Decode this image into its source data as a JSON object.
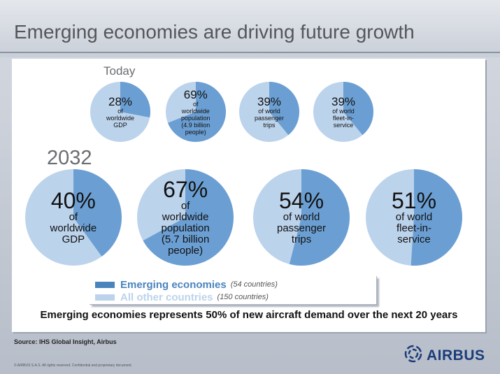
{
  "page": {
    "title": "Emerging economies are driving future growth",
    "source": "Source: IHS Global Insight, Airbus",
    "copyright": "© AIRBUS S.A.S. All rights reserved. Confidential and proprietary document.",
    "logo_text": "AIRBUS",
    "tagline": "Emerging economies represents 50% of new aircraft demand over the next 20 years"
  },
  "colors": {
    "emerging": "#4a84bd",
    "pie_emerging": "#6b9fd3",
    "other": "#bcd3ec",
    "legend_other_text": "#bcd3ec",
    "logo": "#1c3c7a"
  },
  "legend": {
    "emerging_label": "Emerging economies",
    "emerging_note": "(54 countries)",
    "other_label": "All other countries",
    "other_note": "(150 countries)"
  },
  "chart_data": [
    {
      "type": "pie",
      "title": "Today",
      "series": [
        {
          "pct_text": "28%",
          "desc": "of worldwide GDP",
          "values": {
            "emerging": 28,
            "other": 72
          }
        },
        {
          "pct_text": "69%",
          "desc": "of worldwide population (4.9 billion people)",
          "values": {
            "emerging": 69,
            "other": 31
          }
        },
        {
          "pct_text": "39%",
          "desc": "of world passenger trips",
          "values": {
            "emerging": 39,
            "other": 61
          }
        },
        {
          "pct_text": "39%",
          "desc": "of world fleet-in-service",
          "values": {
            "emerging": 39,
            "other": 61
          }
        }
      ]
    },
    {
      "type": "pie",
      "title": "2032",
      "series": [
        {
          "pct_text": "40%",
          "desc": "of worldwide GDP",
          "values": {
            "emerging": 40,
            "other": 60
          }
        },
        {
          "pct_text": "67%",
          "desc": "of worldwide population (5.7 billion people)",
          "values": {
            "emerging": 67,
            "other": 33
          }
        },
        {
          "pct_text": "54%",
          "desc": "of world passenger trips",
          "values": {
            "emerging": 54,
            "other": 46
          }
        },
        {
          "pct_text": "51%",
          "desc": "of world fleet-in-service",
          "values": {
            "emerging": 51,
            "other": 49
          }
        }
      ]
    }
  ],
  "labels": {
    "today": [
      {
        "pct": "28%",
        "lines": [
          "of",
          "worldwide",
          "GDP"
        ]
      },
      {
        "pct": "69%",
        "lines": [
          "of",
          "worldwide",
          "population",
          "(4.9 billion",
          "people)"
        ]
      },
      {
        "pct": "39%",
        "lines": [
          "of world",
          "passenger",
          "trips"
        ]
      },
      {
        "pct": "39%",
        "lines": [
          "of world",
          "fleet-in-",
          "service"
        ]
      }
    ],
    "future": [
      {
        "pct": "40%",
        "lines": [
          "of",
          "worldwide",
          "GDP"
        ]
      },
      {
        "pct": "67%",
        "lines": [
          "of",
          "worldwide",
          "population",
          "(5.7 billion",
          "people)"
        ]
      },
      {
        "pct": "54%",
        "lines": [
          "of world",
          "passenger",
          "trips"
        ]
      },
      {
        "pct": "51%",
        "lines": [
          "of world",
          "fleet-in-",
          "service"
        ]
      }
    ]
  }
}
